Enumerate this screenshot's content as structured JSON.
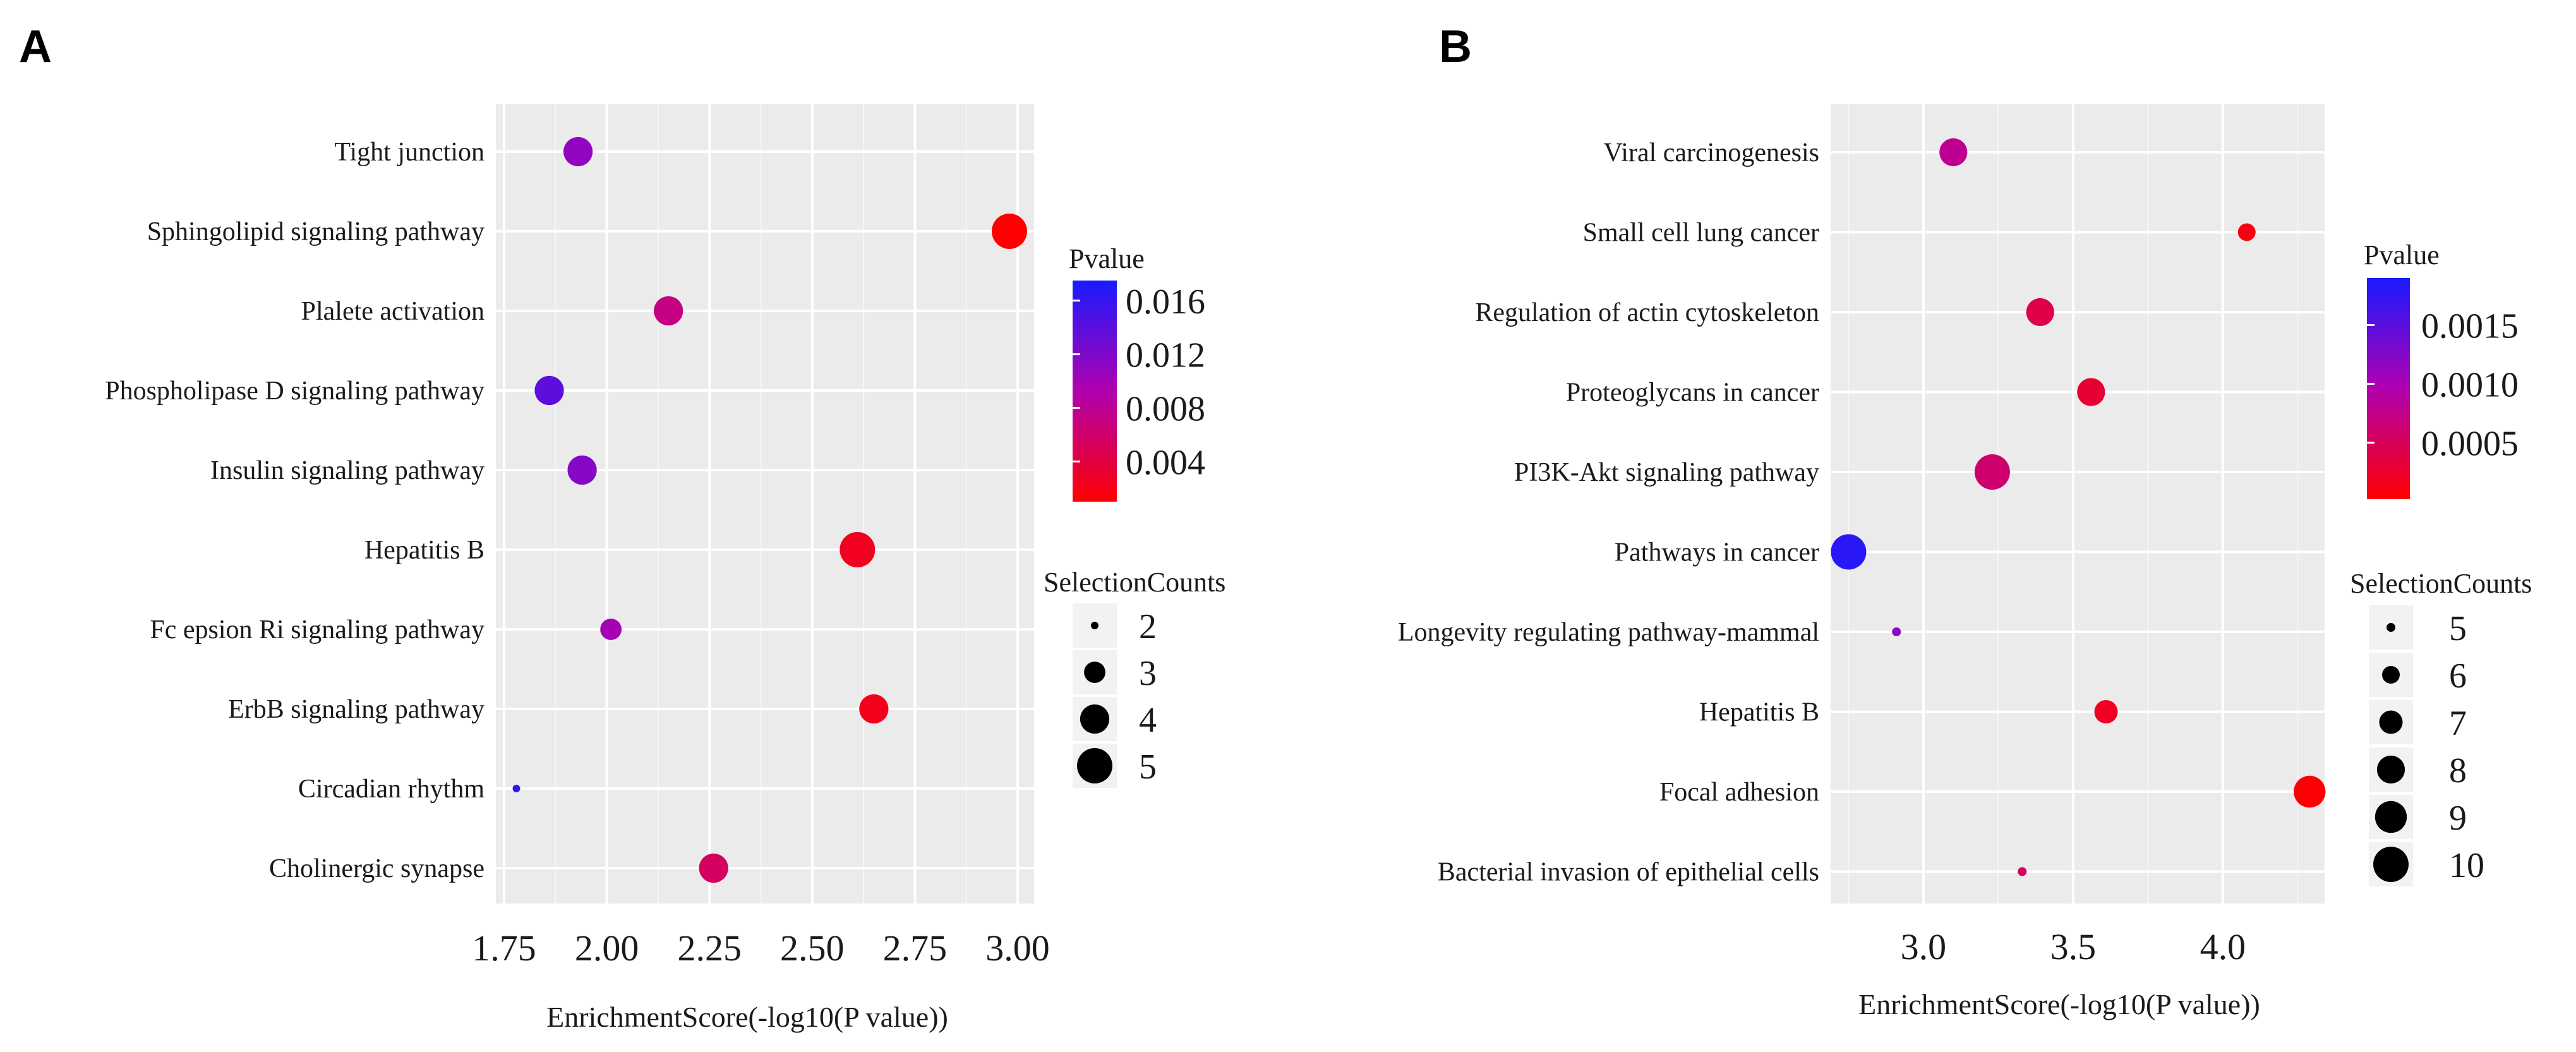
{
  "chart_data": [
    {
      "panel": "A",
      "type": "scatter",
      "title": "",
      "xlabel": "EnrichmentScore(-log10(P value))",
      "ylabel": "",
      "xlim": [
        1.73,
        3.04
      ],
      "xticks": [
        1.75,
        2.0,
        2.25,
        2.5,
        2.75,
        3.0
      ],
      "xtick_labels": [
        "1.75",
        "2.00",
        "2.25",
        "2.50",
        "2.75",
        "3.00"
      ],
      "categories": [
        "Tight junction",
        "Sphingolipid signaling pathway",
        "Plalete activation",
        "Phospholipase D signaling pathway",
        "Insulin signaling pathway",
        "Hepatitis B",
        "Fc epsion Ri signaling pathway",
        "ErbB signaling pathway",
        "Circadian rhythm",
        "Cholinergic synapse"
      ],
      "points": [
        {
          "category": "Tight junction",
          "x": 1.93,
          "pvalue": 0.0109,
          "count": 4
        },
        {
          "category": "Sphingolipid signaling pathway",
          "x": 2.98,
          "pvalue": 0.001,
          "count": 5
        },
        {
          "category": "Plalete activation",
          "x": 2.15,
          "pvalue": 0.0071,
          "count": 4
        },
        {
          "category": "Phospholipase D signaling pathway",
          "x": 1.86,
          "pvalue": 0.0138,
          "count": 4
        },
        {
          "category": "Insulin signaling pathway",
          "x": 1.94,
          "pvalue": 0.0115,
          "count": 4
        },
        {
          "category": "Hepatitis B",
          "x": 2.61,
          "pvalue": 0.0025,
          "count": 5
        },
        {
          "category": "Fc epsion Ri signaling pathway",
          "x": 2.01,
          "pvalue": 0.0098,
          "count": 3
        },
        {
          "category": "ErbB signaling pathway",
          "x": 2.65,
          "pvalue": 0.0022,
          "count": 4
        },
        {
          "category": "Circadian rhythm",
          "x": 1.78,
          "pvalue": 0.0166,
          "count": 2
        },
        {
          "category": "Cholinergic synapse",
          "x": 2.26,
          "pvalue": 0.0055,
          "count": 4
        }
      ],
      "color_legend": {
        "title": "Pvalue",
        "min": 0.001,
        "max": 0.0175,
        "ticks": [
          0.016,
          0.012,
          0.008,
          0.004
        ],
        "tick_labels": [
          "0.016",
          "0.012",
          "0.008",
          "0.004"
        ],
        "high_color": "#1a1aff",
        "mid_color": "#b000b0",
        "low_color": "#ff0000"
      },
      "size_legend": {
        "title": "SelectionCounts",
        "values": [
          2,
          3,
          4,
          5
        ],
        "labels": [
          "2",
          "3",
          "4",
          "5"
        ]
      }
    },
    {
      "panel": "B",
      "type": "scatter",
      "title": "",
      "xlabel": "EnrichmentScore(-log10(P value))",
      "ylabel": "",
      "xlim": [
        2.69,
        4.34
      ],
      "xticks": [
        3.0,
        3.5,
        4.0
      ],
      "xtick_labels": [
        "3.0",
        "3.5",
        "4.0"
      ],
      "categories": [
        "Viral carcinogenesis",
        "Small cell lung cancer",
        "Regulation of actin cytoskeleton",
        "Proteoglycans in cancer",
        "PI3K-Akt signaling pathway",
        "Pathways in cancer",
        "Longevity regulating pathway-mammal",
        "Hepatitis B",
        "Focal adhesion",
        "Bacterial invasion of epithelial cells"
      ],
      "points": [
        {
          "category": "Viral carcinogenesis",
          "x": 3.1,
          "pvalue": 0.0008,
          "count": 8
        },
        {
          "category": "Small cell lung cancer",
          "x": 4.08,
          "pvalue": 0.0001,
          "count": 6
        },
        {
          "category": "Regulation of actin cytoskeleton",
          "x": 3.39,
          "pvalue": 0.0004,
          "count": 8
        },
        {
          "category": "Proteoglycans in cancer",
          "x": 3.56,
          "pvalue": 0.0003,
          "count": 8
        },
        {
          "category": "PI3K-Akt signaling pathway",
          "x": 3.23,
          "pvalue": 0.0006,
          "count": 10
        },
        {
          "category": "Pathways in cancer",
          "x": 2.75,
          "pvalue": 0.0018,
          "count": 10
        },
        {
          "category": "Longevity regulating pathway-mammal",
          "x": 2.91,
          "pvalue": 0.0012,
          "count": 5
        },
        {
          "category": "Hepatitis B",
          "x": 3.61,
          "pvalue": 0.0002,
          "count": 7
        },
        {
          "category": "Focal adhesion",
          "x": 4.29,
          "pvalue": 5e-05,
          "count": 9
        },
        {
          "category": "Bacterial invasion of epithelial cells",
          "x": 3.33,
          "pvalue": 0.0005,
          "count": 5
        }
      ],
      "color_legend": {
        "title": "Pvalue",
        "min": 2e-05,
        "max": 0.0019,
        "ticks": [
          0.0015,
          0.001,
          0.0005
        ],
        "tick_labels": [
          "0.0015",
          "0.0010",
          "0.0005"
        ],
        "high_color": "#1a1aff",
        "mid_color": "#b000b0",
        "low_color": "#ff0000"
      },
      "size_legend": {
        "title": "SelectionCounts",
        "values": [
          5,
          6,
          7,
          8,
          9,
          10
        ],
        "labels": [
          "5",
          "6",
          "7",
          "8",
          "9",
          "10"
        ]
      }
    }
  ]
}
